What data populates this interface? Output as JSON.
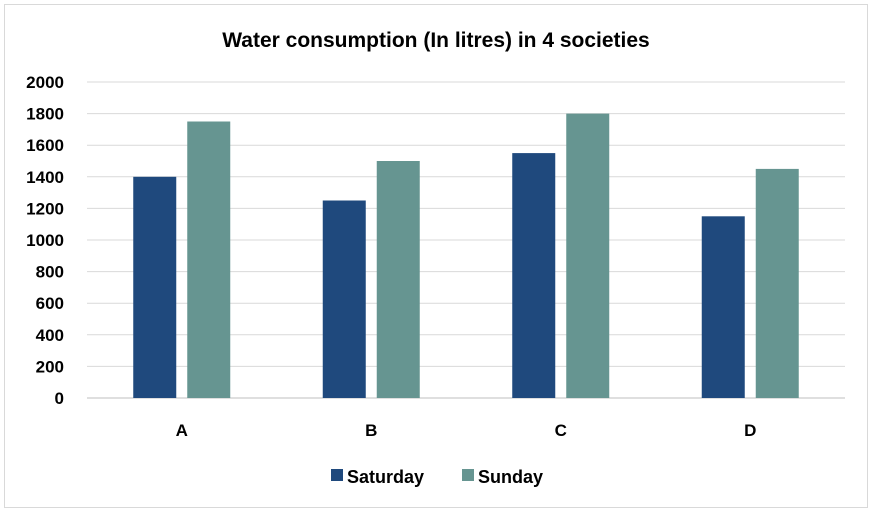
{
  "chart_data": {
    "type": "bar",
    "title": "Water consumption (In litres) in 4 societies",
    "xlabel": "",
    "ylabel": "",
    "categories": [
      "A",
      "B",
      "C",
      "D"
    ],
    "series": [
      {
        "name": "Saturday",
        "values": [
          1400,
          1250,
          1550,
          1150
        ],
        "color": "#1f497d"
      },
      {
        "name": "Sunday",
        "values": [
          1750,
          1500,
          1800,
          1450
        ],
        "color": "#669591"
      }
    ],
    "ylim": [
      0,
      2000
    ],
    "yticks": [
      0,
      200,
      400,
      600,
      800,
      1000,
      1200,
      1400,
      1600,
      1800,
      2000
    ],
    "grid": true,
    "legend_position": "bottom"
  }
}
